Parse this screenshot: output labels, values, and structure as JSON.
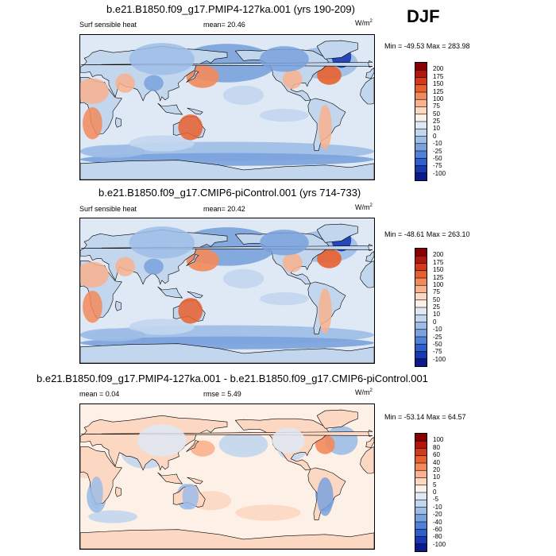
{
  "season": "DJF",
  "panels": [
    {
      "title": "b.e21.B1850.f09_g17.PMIP4-127ka.001 (yrs 190-209)",
      "left_label": "Surf sensible heat",
      "mid_label": "mean=  20.46",
      "units": "W/m",
      "units_exp": "2",
      "minmax": "Min = -49.53 Max = 283.98",
      "levels": [
        "200",
        "175",
        "150",
        "125",
        "100",
        "75",
        "50",
        "25",
        "10",
        "0",
        "-10",
        "-25",
        "-50",
        "-75",
        "-100"
      ],
      "colors": [
        "#8a0000",
        "#b3160c",
        "#d23a1a",
        "#e8602f",
        "#f3895a",
        "#f9b18e",
        "#fcd7c2",
        "#fdf0e6",
        "#dfe9f5",
        "#c2d6ee",
        "#9dbde7",
        "#7aa2dd",
        "#5080d7",
        "#2f5fcb",
        "#1838b4",
        "#0a1a8a"
      ]
    },
    {
      "title": "b.e21.B1850.f09_g17.CMIP6-piControl.001 (yrs 714-733)",
      "left_label": "Surf sensible heat",
      "mid_label": "mean=  20.42",
      "units": "W/m",
      "units_exp": "2",
      "minmax": "Min = -48.61 Max = 263.10",
      "levels": [
        "200",
        "175",
        "150",
        "125",
        "100",
        "75",
        "50",
        "25",
        "10",
        "0",
        "-10",
        "-25",
        "-50",
        "-75",
        "-100"
      ],
      "colors": [
        "#8a0000",
        "#b3160c",
        "#d23a1a",
        "#e8602f",
        "#f3895a",
        "#f9b18e",
        "#fcd7c2",
        "#fdf0e6",
        "#dfe9f5",
        "#c2d6ee",
        "#9dbde7",
        "#7aa2dd",
        "#5080d7",
        "#2f5fcb",
        "#1838b4",
        "#0a1a8a"
      ]
    },
    {
      "title": "b.e21.B1850.f09_g17.PMIP4-127ka.001 - b.e21.B1850.f09_g17.CMIP6-piControl.001",
      "left_label": "mean =   0.04",
      "mid_label": "rmse =   5.49",
      "units": "W/m",
      "units_exp": "2",
      "minmax": "Min = -53.14 Max =  64.57",
      "levels": [
        "100",
        "80",
        "60",
        "40",
        "20",
        "10",
        "5",
        "0",
        "-5",
        "-10",
        "-20",
        "-40",
        "-60",
        "-80",
        "-100"
      ],
      "colors": [
        "#8a0000",
        "#b3160c",
        "#d23a1a",
        "#e8602f",
        "#f3895a",
        "#f9b18e",
        "#fcd7c2",
        "#fdf0e6",
        "#dfe9f5",
        "#c2d6ee",
        "#9dbde7",
        "#7aa2dd",
        "#5080d7",
        "#2f5fcb",
        "#1838b4",
        "#0a1a8a"
      ]
    }
  ]
}
